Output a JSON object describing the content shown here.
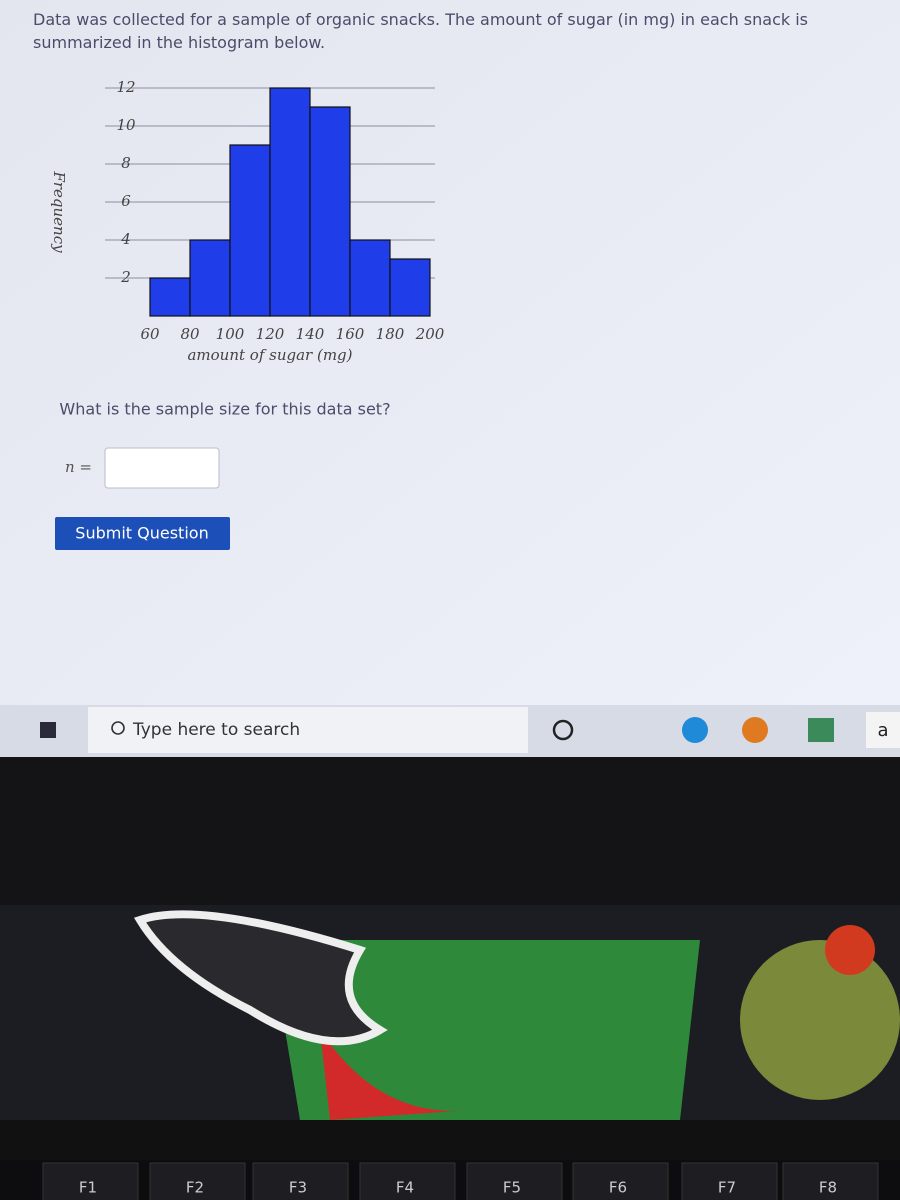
{
  "question": "Data was collected for a sample of organic snacks. The amount of sugar (in mg) in each snack is summarized in the histogram below.",
  "chart_data": {
    "type": "histogram",
    "bins": [
      60,
      80,
      100,
      120,
      140,
      160,
      180,
      200
    ],
    "values": [
      2,
      4,
      9,
      12,
      11,
      4,
      3
    ],
    "color": "#1f3de8",
    "xlim": [
      40,
      205
    ],
    "ylim": [
      0,
      12
    ],
    "xticks": [
      60,
      80,
      100,
      120,
      140,
      160,
      180,
      200
    ],
    "yticks": [
      2,
      4,
      6,
      8,
      10,
      12
    ],
    "xlabel": "amount of sugar (mg)",
    "ylabel": "Frequency",
    "grid": true
  },
  "prompt": "What is the sample size for this data set?",
  "answer_label": "n =",
  "button": "Submit Question",
  "taskbar": {
    "search": "Type here to search",
    "app_letter": "a"
  },
  "keyboard": {
    "keys": [
      "F1",
      "F2",
      "F3",
      "F4",
      "F5",
      "F6",
      "F7",
      "F8"
    ]
  }
}
